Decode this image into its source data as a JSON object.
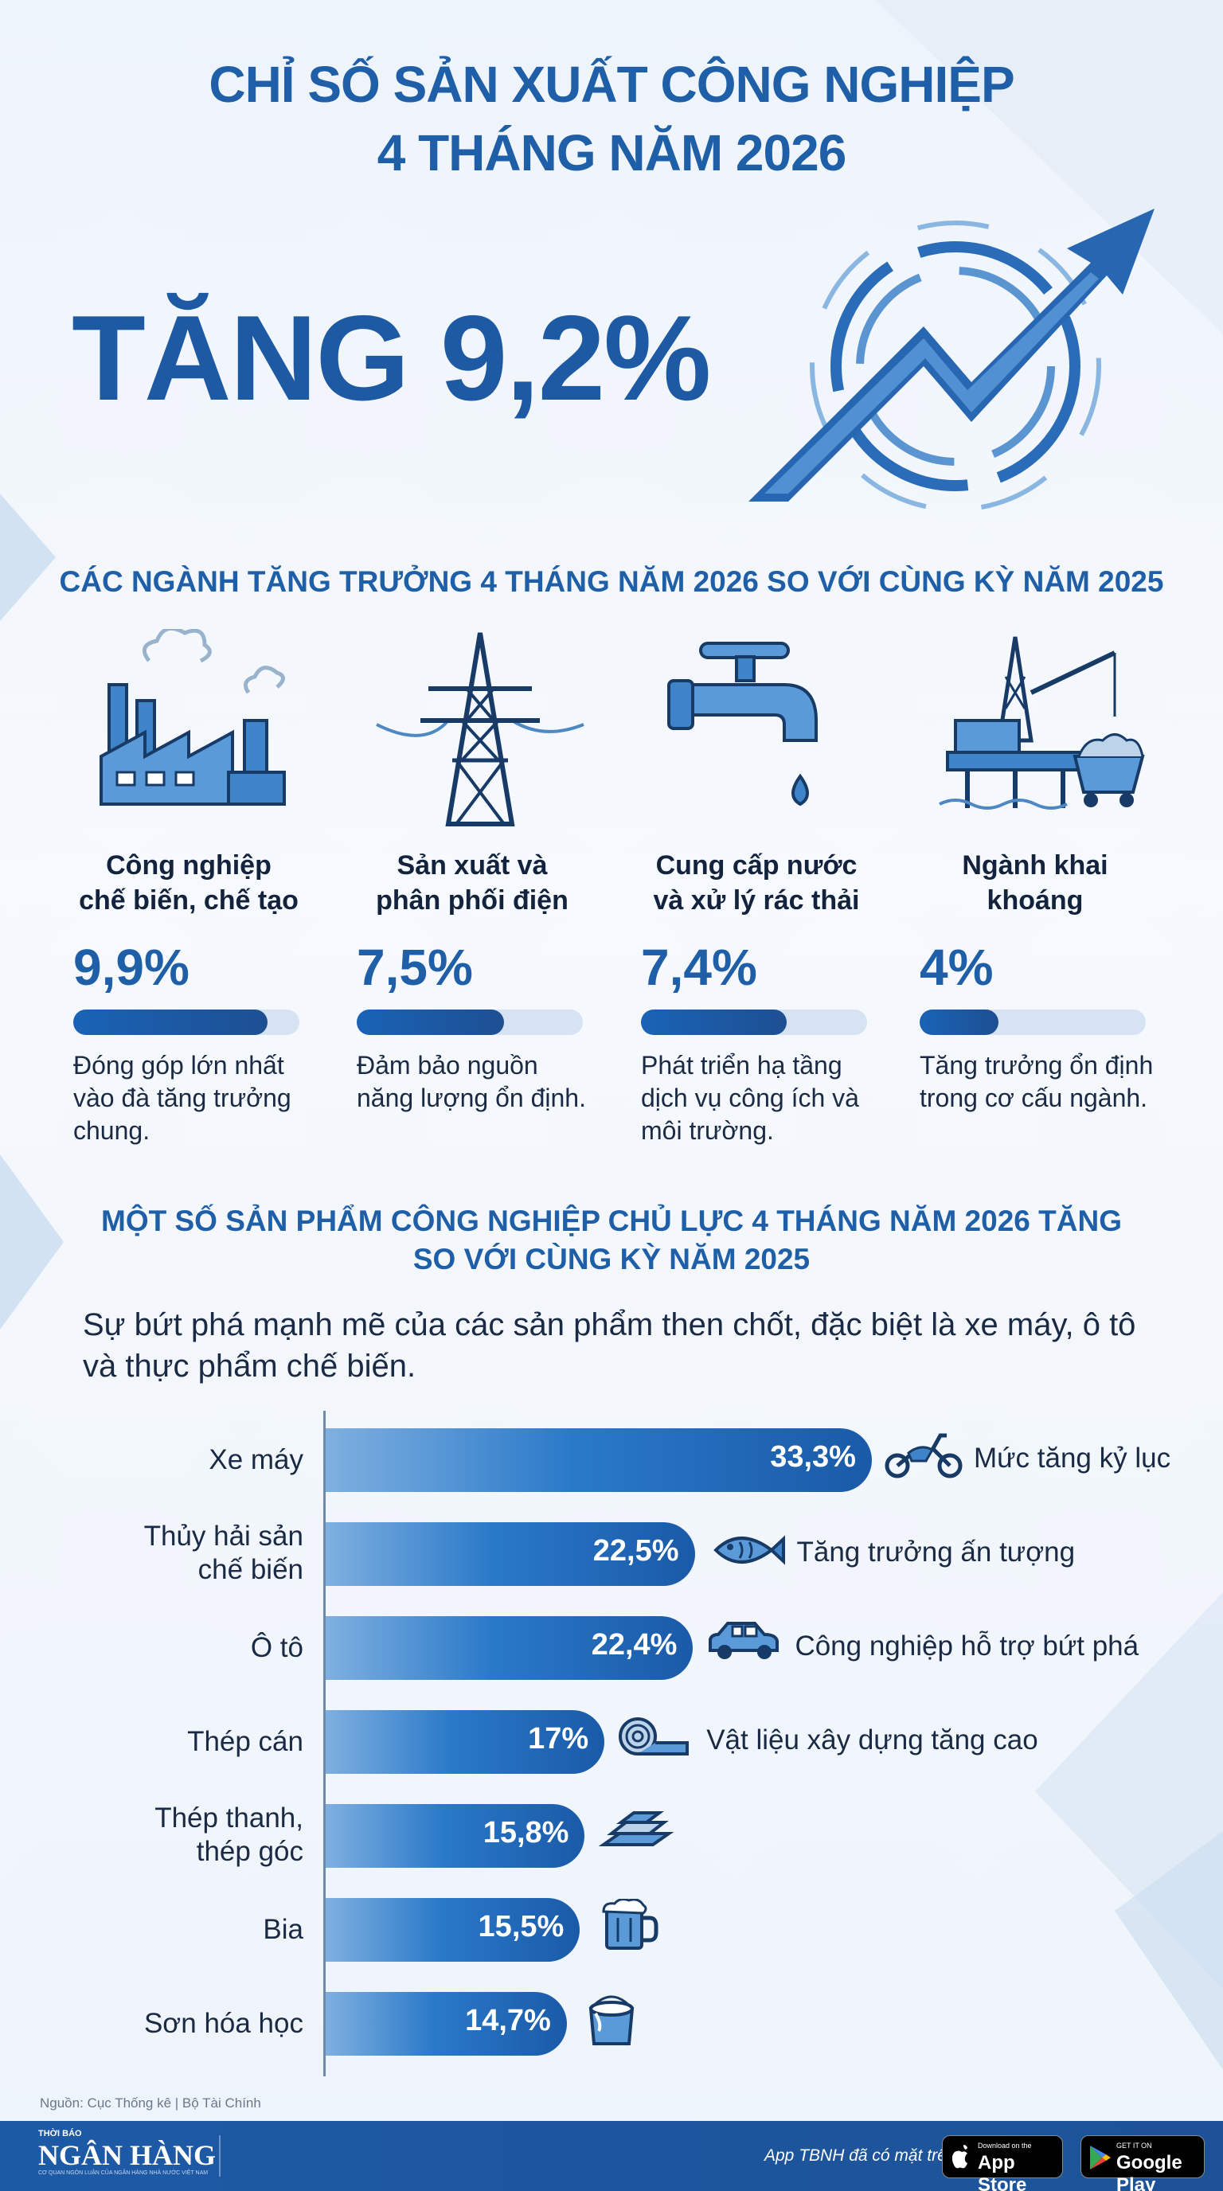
{
  "title": {
    "line1": "CHỈ SỐ SẢN XUẤT CÔNG NGHIỆP",
    "line2": "4 THÁNG NĂM 2026"
  },
  "headline": "TĂNG 9,2%",
  "section1": {
    "heading": "CÁC NGÀNH TĂNG TRƯỞNG 4 THÁNG NĂM 2026 SO VỚI CÙNG KỲ NĂM 2025",
    "industries": [
      {
        "name1": "Công nghiệp",
        "name2": "chế biến, chế tạo",
        "pct_label": "9,9%",
        "value": 9.9,
        "desc1": "Đóng góp lớn nhất",
        "desc2": "vào đà tăng trưởng",
        "desc3": "chung.",
        "icon": "factory-icon"
      },
      {
        "name1": "Sản xuất và",
        "name2": "phân phối điện",
        "pct_label": "7,5%",
        "value": 7.5,
        "desc1": "Đảm bảo nguồn",
        "desc2": "năng lượng ổn định.",
        "desc3": "",
        "icon": "power-tower-icon"
      },
      {
        "name1": "Cung cấp nước",
        "name2": "và xử lý rác thải",
        "pct_label": "7,4%",
        "value": 7.4,
        "desc1": "Phát triển hạ tầng",
        "desc2": "dịch vụ công ích và",
        "desc3": "môi trường.",
        "icon": "water-tap-icon"
      },
      {
        "name1": "Ngành khai",
        "name2": "khoáng",
        "pct_label": "4%",
        "value": 4,
        "desc1": "Tăng trưởng ổn định",
        "desc2": "trong cơ cấu ngành.",
        "desc3": "",
        "icon": "oil-rig-icon"
      }
    ]
  },
  "section2": {
    "heading1": "MỘT SỐ SẢN PHẨM CÔNG NGHIỆP CHỦ LỰC 4 THÁNG NĂM 2026 TĂNG",
    "heading2": "SO VỚI CÙNG KỲ NĂM 2025",
    "intro1": "Sự bứt phá mạnh mẽ của các sản phẩm then chốt, đặc biệt là xe máy, ô tô",
    "intro2": "và thực phẩm chế biến."
  },
  "chart_data": {
    "type": "bar",
    "orientation": "horizontal",
    "categories": [
      "Xe máy",
      "Thủy hải sản chế biến",
      "Ô tô",
      "Thép cán",
      "Thép thanh, thép góc",
      "Bia",
      "Sơn hóa học"
    ],
    "category_lines": [
      [
        "Xe máy"
      ],
      [
        "Thủy hải sản",
        "chế biến"
      ],
      [
        "Ô tô"
      ],
      [
        "Thép cán"
      ],
      [
        "Thép thanh,",
        "thép góc"
      ],
      [
        "Bia"
      ],
      [
        "Sơn hóa học"
      ]
    ],
    "values": [
      33.3,
      22.5,
      22.4,
      17,
      15.8,
      15.5,
      14.7
    ],
    "value_labels": [
      "33,3%",
      "22,5%",
      "22,4%",
      "17%",
      "15,8%",
      "15,5%",
      "14,7%"
    ],
    "annotations": [
      "Mức tăng kỷ lục",
      "Tăng trưởng ấn tượng",
      "Công nghiệp hỗ trợ bứt phá",
      "Vật liệu xây dựng tăng cao",
      "",
      "",
      ""
    ],
    "icons": [
      "motorbike-icon",
      "fish-icon",
      "car-icon",
      "steel-roll-icon",
      "steel-bars-icon",
      "beer-mug-icon",
      "paint-bucket-icon"
    ]
  },
  "source": "Nguồn: Cục Thống kê | Bộ Tài Chính",
  "footer": {
    "brand_small": "THỜI BÁO",
    "brand": "NGÂN HÀNG",
    "brand_sub": "CƠ QUAN NGÔN LUẬN CỦA NGÂN HÀNG NHÀ NƯỚC VIỆT NAM",
    "app_text": "App TBNH đã có mặt trên",
    "appstore_small": "Download on the",
    "appstore_big": "App Store",
    "googleplay_small": "GET IT ON",
    "googleplay_big": "Google Play"
  },
  "colors": {
    "primary": "#1f5fa8",
    "bar": "#2a79c9",
    "track": "#d5e3f2",
    "footer": "#1d5aa6"
  }
}
